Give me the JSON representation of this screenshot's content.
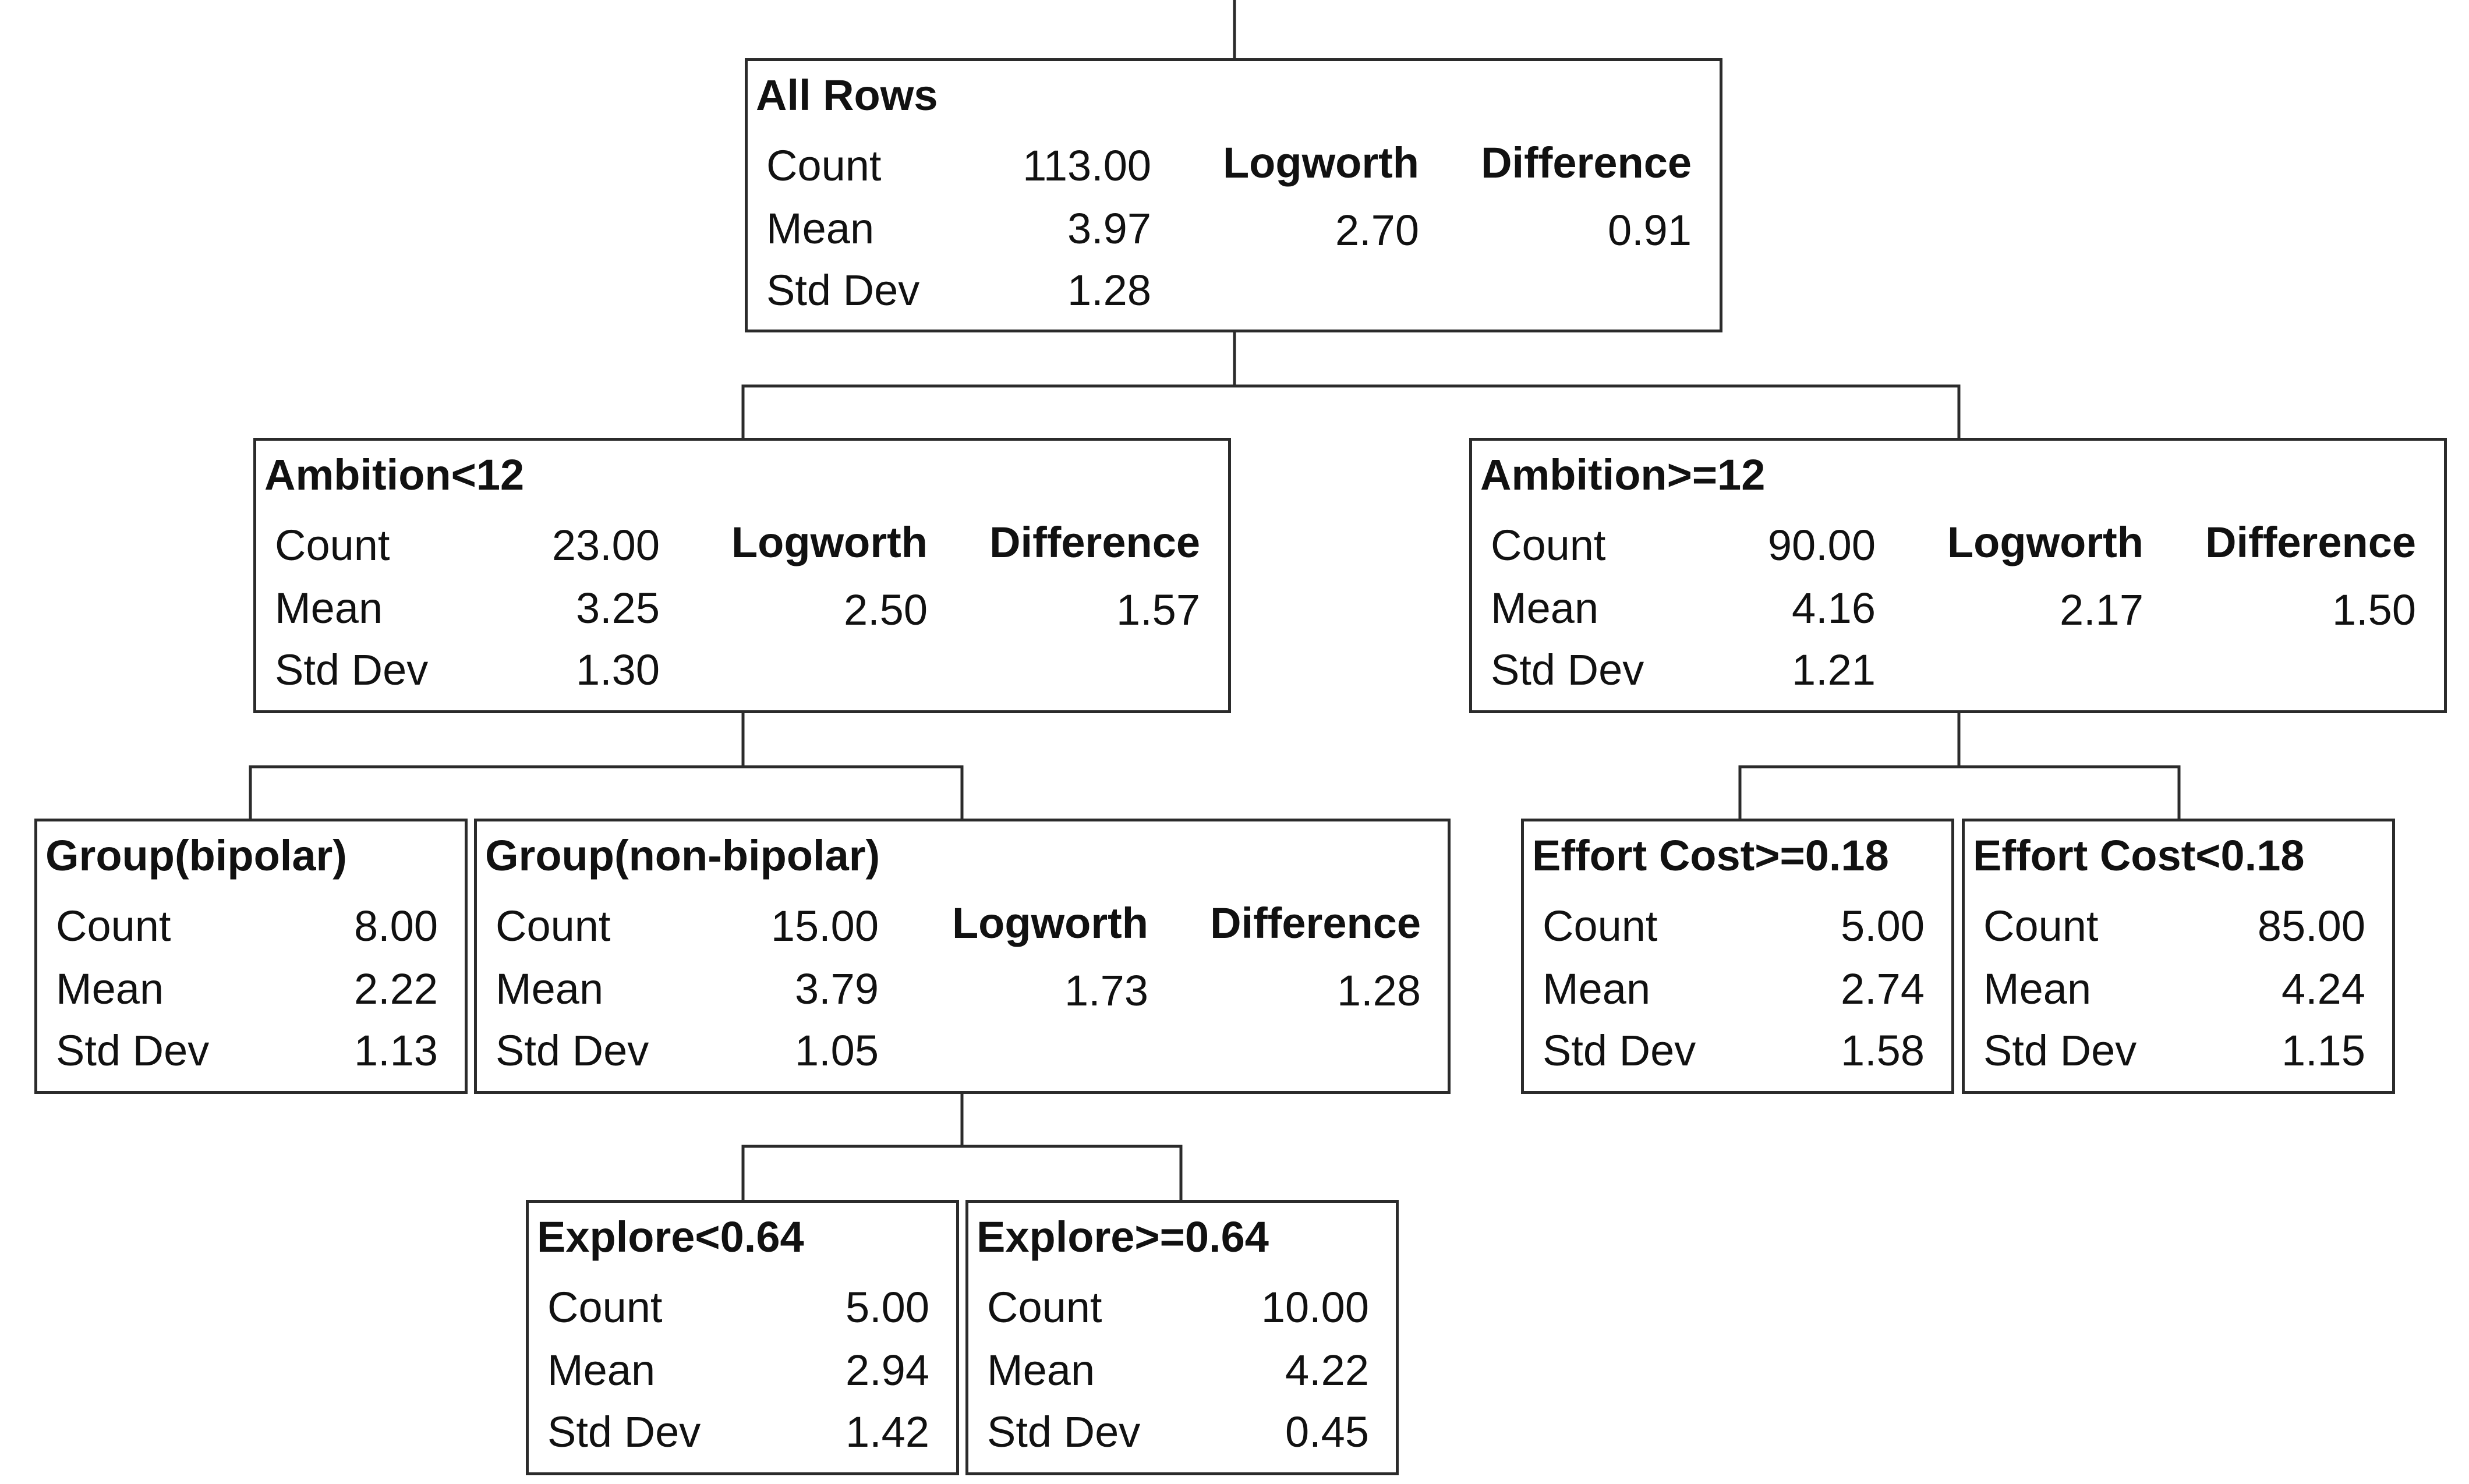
{
  "stat_labels": {
    "count": "Count",
    "mean": "Mean",
    "std_dev": "Std Dev"
  },
  "split_headers": {
    "logworth": "Logworth",
    "difference": "Difference"
  },
  "colors": {
    "border": "#2b2b2b",
    "connector": "#2b2b2b",
    "background": "#ffffff"
  },
  "nodes": [
    {
      "id": "all-rows",
      "title": "All Rows",
      "count": "113.00",
      "mean": "3.97",
      "std_dev": "1.28",
      "logworth": "2.70",
      "difference": "0.91"
    },
    {
      "id": "ambition-lt-12",
      "title": "Ambition<12",
      "count": "23.00",
      "mean": "3.25",
      "std_dev": "1.30",
      "logworth": "2.50",
      "difference": "1.57"
    },
    {
      "id": "ambition-ge-12",
      "title": "Ambition>=12",
      "count": "90.00",
      "mean": "4.16",
      "std_dev": "1.21",
      "logworth": "2.17",
      "difference": "1.50"
    },
    {
      "id": "group-bipolar",
      "title": "Group(bipolar)",
      "count": "8.00",
      "mean": "2.22",
      "std_dev": "1.13"
    },
    {
      "id": "group-non-bipolar",
      "title": "Group(non-bipolar)",
      "count": "15.00",
      "mean": "3.79",
      "std_dev": "1.05",
      "logworth": "1.73",
      "difference": "1.28"
    },
    {
      "id": "effort-cost-ge-018",
      "title": "Effort Cost>=0.18",
      "count": "5.00",
      "mean": "2.74",
      "std_dev": "1.58"
    },
    {
      "id": "effort-cost-lt-018",
      "title": "Effort Cost<0.18",
      "count": "85.00",
      "mean": "4.24",
      "std_dev": "1.15"
    },
    {
      "id": "explore-lt-064",
      "title": "Explore<0.64",
      "count": "5.00",
      "mean": "2.94",
      "std_dev": "1.42"
    },
    {
      "id": "explore-ge-064",
      "title": "Explore>=0.64",
      "count": "10.00",
      "mean": "4.22",
      "std_dev": "0.45"
    }
  ]
}
